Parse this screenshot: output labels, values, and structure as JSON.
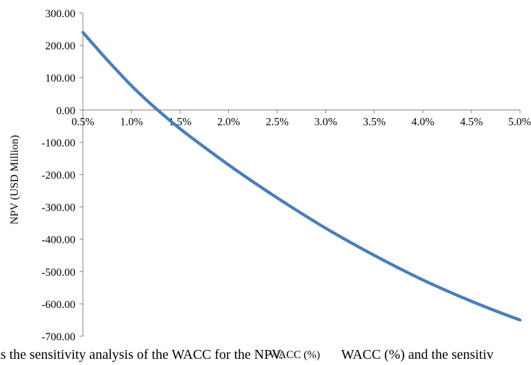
{
  "chart_data": {
    "type": "line",
    "xlabel": "WACC (%)",
    "ylabel": "NPV (USD Million)",
    "x_tick_labels": [
      "0.5%",
      "1.0%",
      "1.5%",
      "2.0%",
      "2.5%",
      "3.0%",
      "3.5%",
      "4.0%",
      "4.5%",
      "5.0%"
    ],
    "y_tick_labels": [
      "300.00",
      "200.00",
      "100.00",
      "0.00",
      "-100.00",
      "-200.00",
      "-300.00",
      "-400.00",
      "-500.00",
      "-600.00",
      "-700.00"
    ],
    "xlim": [
      0.5,
      5.0
    ],
    "ylim": [
      -700,
      300
    ],
    "grid": false,
    "legend": "none",
    "series": [
      {
        "color": "#4A7EBB",
        "x": [
          0.5,
          0.75,
          1.0,
          1.25,
          1.5,
          1.75,
          2.0,
          2.25,
          2.5,
          2.75,
          3.0,
          3.25,
          3.5,
          3.75,
          4.0,
          4.25,
          4.5,
          4.75,
          5.0
        ],
        "y": [
          240,
          155,
          75,
          5,
          -58,
          -115,
          -170,
          -222,
          -272,
          -320,
          -366,
          -409,
          -450,
          -489,
          -526,
          -560,
          -592,
          -622,
          -650
        ]
      }
    ]
  },
  "caption_fragments": {
    "left": "depicts the sensitivity analysis of the WACC for the NPV.",
    "right": "WACC (%) and the sensitiv"
  }
}
